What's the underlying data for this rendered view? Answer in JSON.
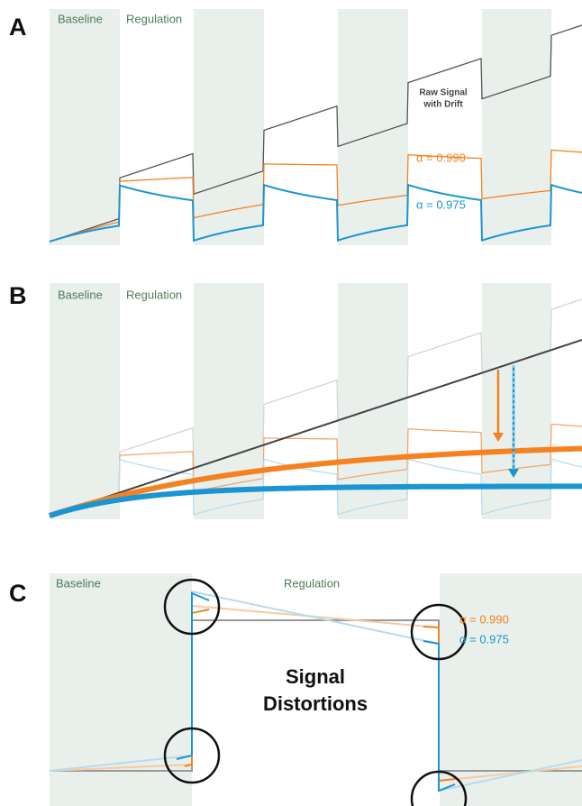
{
  "panels": [
    {
      "label": "A",
      "baseline": "Baseline",
      "regulation": "Regulation",
      "raw_label": [
        "Raw Signal",
        "with Drift"
      ],
      "alpha_high": "α = 0.990",
      "alpha_low": "α = 0.975"
    },
    {
      "label": "B",
      "baseline": "Baseline",
      "regulation": "Regulation"
    },
    {
      "label": "C",
      "baseline": "Baseline",
      "regulation": "Regulation",
      "alpha_high": "α = 0.990",
      "alpha_low": "α = 0.975",
      "callout": [
        "Signal",
        "Distortions"
      ]
    }
  ]
}
